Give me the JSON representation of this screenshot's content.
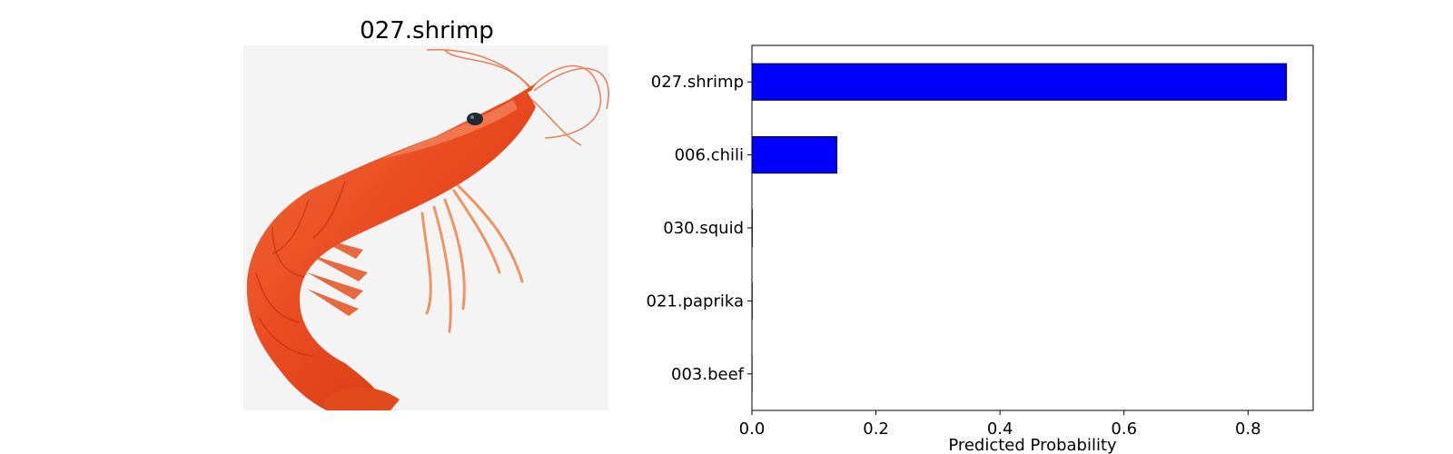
{
  "image_panel": {
    "title": "027.shrimp",
    "subject_icon": "shrimp-photo",
    "colors": {
      "shell": "#e8481e",
      "shell_dark": "#c93314",
      "background": "#f4f4f4",
      "eye": "#1e2a30"
    }
  },
  "chart_data": {
    "type": "bar",
    "orientation": "horizontal",
    "categories": [
      "027.shrimp",
      "006.chili",
      "030.squid",
      "021.paprika",
      "003.beef"
    ],
    "values": [
      0.862,
      0.137,
      0.0005,
      0.0004,
      0.0002
    ],
    "xlabel": "Predicted Probability",
    "ylabel": "",
    "xlim": [
      0,
      0.905
    ],
    "xticks": [
      0.0,
      0.2,
      0.4,
      0.6,
      0.8
    ],
    "xtick_labels": [
      "0.0",
      "0.2",
      "0.4",
      "0.6",
      "0.8"
    ],
    "grid": false,
    "bar_color": "#0000ff",
    "edge_color": "#000000"
  }
}
